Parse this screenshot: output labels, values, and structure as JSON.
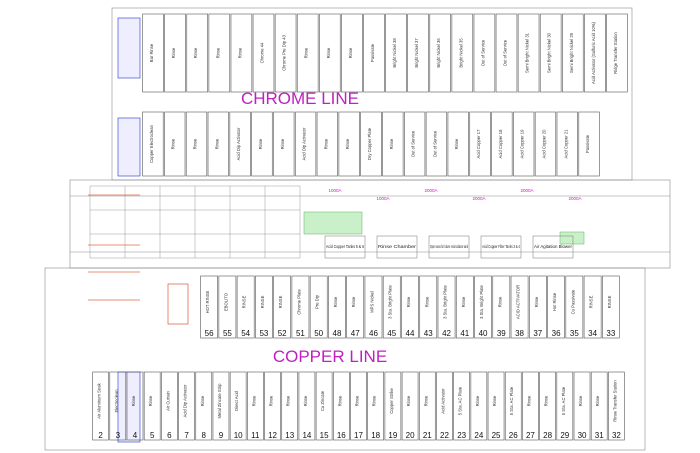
{
  "chrome": {
    "title": "CHROME LINE",
    "top_tanks": [
      "Bar Rinse",
      "Rinse",
      "Rinse",
      "Rinse",
      "Rinse",
      "Chrome 44",
      "Chrome Pre Dip 43",
      "Rinse",
      "Rinse",
      "Rinse",
      "Passivate",
      "Bright Nickel 38",
      "Bright Nickel 37",
      "Bright Nickel 36",
      "Bright Nickel 35",
      "Out of Service",
      "Out of Service",
      "Semi Bright Nickel 31",
      "Semi Bright Nickel 30",
      "Semi Bright Nickel 29",
      "Acid Activator (Sulfuric Acid 10%)",
      "Ridge Transfer Station"
    ],
    "bottom_tanks": [
      "Copper Electroclean",
      "Rinse",
      "Rinse",
      "Rinse",
      "Acid Dip Activator",
      "Rinse",
      "Rinse",
      "Acid Dip Activator",
      "Rinse",
      "Rinse",
      "Dry Copper Plate",
      "Rinse",
      "Out of Service",
      "Out of Service",
      "Rinse",
      "Acid Copper 17",
      "Acid Copper 18",
      "Acid Copper 19",
      "Acid Copper 20",
      "Acid Copper 21",
      "Passivate"
    ]
  },
  "middle": {
    "rectifiers": [
      "1000A",
      "1000A",
      "2000A",
      "2000A",
      "2000A",
      "2000A"
    ],
    "labels": [
      "Acid Copper Tanks 5 & 6",
      "Rinse Chamber",
      "Open area for future recirculation tank",
      "Acid Copper Filter Tanks 3 & 4",
      "Air Agitation Blower"
    ]
  },
  "copper": {
    "title": "COPPER LINE",
    "upper_tanks": [
      {
        "num": "56",
        "label": "HOT RINSE"
      },
      {
        "num": "55",
        "label": "EBOLITO"
      },
      {
        "num": "54",
        "label": "RINSE"
      },
      {
        "num": "53",
        "label": "RINSE"
      },
      {
        "num": "52",
        "label": "RINSE"
      },
      {
        "num": "51",
        "label": "Chrome Plate"
      },
      {
        "num": "50",
        "label": "Pre Dip"
      },
      {
        "num": "48",
        "label": "Rinse"
      },
      {
        "num": "47",
        "label": "Rinse"
      },
      {
        "num": "46",
        "label": "MPS Nickel"
      },
      {
        "num": "45",
        "label": "3 Sta. Bright Plate"
      },
      {
        "num": "44",
        "label": "Rinse"
      },
      {
        "num": "43",
        "label": "Rinse"
      },
      {
        "num": "42",
        "label": "3 Sta. Bright Plate"
      },
      {
        "num": "41",
        "label": "Rinse"
      },
      {
        "num": "40",
        "label": "3 Sta. Bright Plate"
      },
      {
        "num": "39",
        "label": "Rinse"
      },
      {
        "num": "38",
        "label": "ACID ACTIVATOR"
      },
      {
        "num": "37",
        "label": "Rinse"
      },
      {
        "num": "36",
        "label": "Hot Rinse"
      },
      {
        "num": "35",
        "label": "Cu Passivate"
      },
      {
        "num": "34",
        "label": "RINSE"
      },
      {
        "num": "33",
        "label": "RINSE"
      }
    ],
    "lower_tanks": [
      {
        "num": "2",
        "label": "Air Aluminum Soak"
      },
      {
        "num": "3",
        "label": "Electroclean"
      },
      {
        "num": "4",
        "label": "Rinse"
      },
      {
        "num": "5",
        "label": "Rinse"
      },
      {
        "num": "6",
        "label": "Air Curtain"
      },
      {
        "num": "7",
        "label": "Acid Dip Activator"
      },
      {
        "num": "8",
        "label": "Rinse"
      },
      {
        "num": "9",
        "label": "Metal Zincate Strip"
      },
      {
        "num": "10",
        "label": "Direct Acid"
      },
      {
        "num": "11",
        "label": "Rinse"
      },
      {
        "num": "12",
        "label": "Rinse"
      },
      {
        "num": "13",
        "label": "Rinse"
      },
      {
        "num": "14",
        "label": "Rinse"
      },
      {
        "num": "15",
        "label": "Cu Zincate"
      },
      {
        "num": "16",
        "label": "Rinse"
      },
      {
        "num": "17",
        "label": "Rinse"
      },
      {
        "num": "18",
        "label": "Rinse"
      },
      {
        "num": "19",
        "label": "Copper Strike"
      },
      {
        "num": "20",
        "label": "Rinse"
      },
      {
        "num": "21",
        "label": "Rinse"
      },
      {
        "num": "22",
        "label": "Acid Activator"
      },
      {
        "num": "23",
        "label": "5 Sta. AC Plate"
      },
      {
        "num": "24",
        "label": "Rinse"
      },
      {
        "num": "25",
        "label": "Rinse"
      },
      {
        "num": "26",
        "label": "5 Sta. AC Plate"
      },
      {
        "num": "27",
        "label": "Rinse"
      },
      {
        "num": "28",
        "label": "Rinse"
      },
      {
        "num": "29",
        "label": "5 Sta. AC Plate"
      },
      {
        "num": "30",
        "label": "Rinse"
      },
      {
        "num": "31",
        "label": "Rinse"
      },
      {
        "num": "32",
        "label": "Rinse Transfer Station"
      }
    ]
  }
}
